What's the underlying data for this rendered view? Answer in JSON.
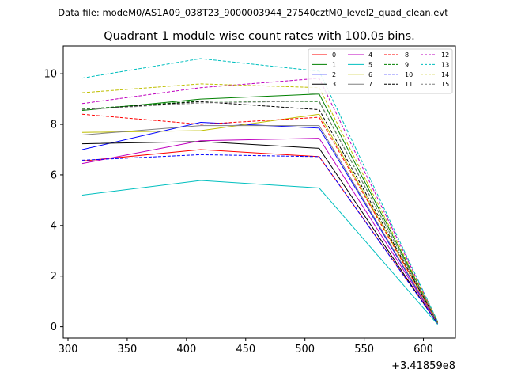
{
  "chart_data": {
    "type": "line",
    "suptitle": "Data file: modeM0/AS1A09_038T23_9000003944_27540cztM0_level2_quad_clean.evt",
    "title": "Quadrant 1 module wise count rates with 100.0s bins.",
    "xlabel": "",
    "ylabel": "",
    "x_offset_label": "+3.41859e8",
    "x": [
      312,
      412,
      512,
      612
    ],
    "xlim": [
      296,
      627
    ],
    "ylim": [
      -0.45,
      11.1
    ],
    "xticks": [
      300,
      350,
      400,
      450,
      500,
      550,
      600
    ],
    "yticks": [
      0,
      2,
      4,
      6,
      8,
      10
    ],
    "legend_position": "top-right",
    "series": [
      {
        "name": "0",
        "color": "#ff0000",
        "dash": "solid",
        "values": [
          6.55,
          7.0,
          6.72,
          0.15
        ]
      },
      {
        "name": "1",
        "color": "#008000",
        "dash": "solid",
        "values": [
          8.55,
          9.0,
          9.2,
          0.18
        ]
      },
      {
        "name": "2",
        "color": "#0000ff",
        "dash": "solid",
        "values": [
          7.0,
          8.08,
          7.85,
          0.12
        ]
      },
      {
        "name": "3",
        "color": "#000000",
        "dash": "solid",
        "values": [
          7.23,
          7.32,
          7.05,
          0.1
        ]
      },
      {
        "name": "4",
        "color": "#bf00bf",
        "dash": "solid",
        "values": [
          6.45,
          7.35,
          7.45,
          0.13
        ]
      },
      {
        "name": "5",
        "color": "#00bfbf",
        "dash": "solid",
        "values": [
          5.2,
          5.78,
          5.48,
          0.09
        ]
      },
      {
        "name": "6",
        "color": "#bfbf00",
        "dash": "solid",
        "values": [
          7.68,
          7.75,
          8.4,
          0.16
        ]
      },
      {
        "name": "7",
        "color": "#808080",
        "dash": "solid",
        "values": [
          7.58,
          7.95,
          7.95,
          0.14
        ]
      },
      {
        "name": "8",
        "color": "#ff0000",
        "dash": "dashed",
        "values": [
          8.4,
          8.0,
          8.28,
          0.17
        ]
      },
      {
        "name": "9",
        "color": "#008000",
        "dash": "dashed",
        "values": [
          8.6,
          8.92,
          8.9,
          0.18
        ]
      },
      {
        "name": "10",
        "color": "#0000ff",
        "dash": "dashed",
        "values": [
          6.58,
          6.8,
          6.72,
          0.13
        ]
      },
      {
        "name": "11",
        "color": "#000000",
        "dash": "dashed",
        "values": [
          8.58,
          8.9,
          8.58,
          0.17
        ]
      },
      {
        "name": "12",
        "color": "#bf00bf",
        "dash": "dashed",
        "values": [
          8.82,
          9.45,
          9.82,
          0.2
        ]
      },
      {
        "name": "13",
        "color": "#00bfbf",
        "dash": "dashed",
        "values": [
          9.83,
          10.6,
          10.1,
          0.21
        ]
      },
      {
        "name": "14",
        "color": "#bfbf00",
        "dash": "dashed",
        "values": [
          9.25,
          9.6,
          9.45,
          0.19
        ]
      },
      {
        "name": "15",
        "color": "#808080",
        "dash": "dashed",
        "values": [
          8.58,
          8.85,
          8.92,
          0.18
        ]
      }
    ]
  }
}
